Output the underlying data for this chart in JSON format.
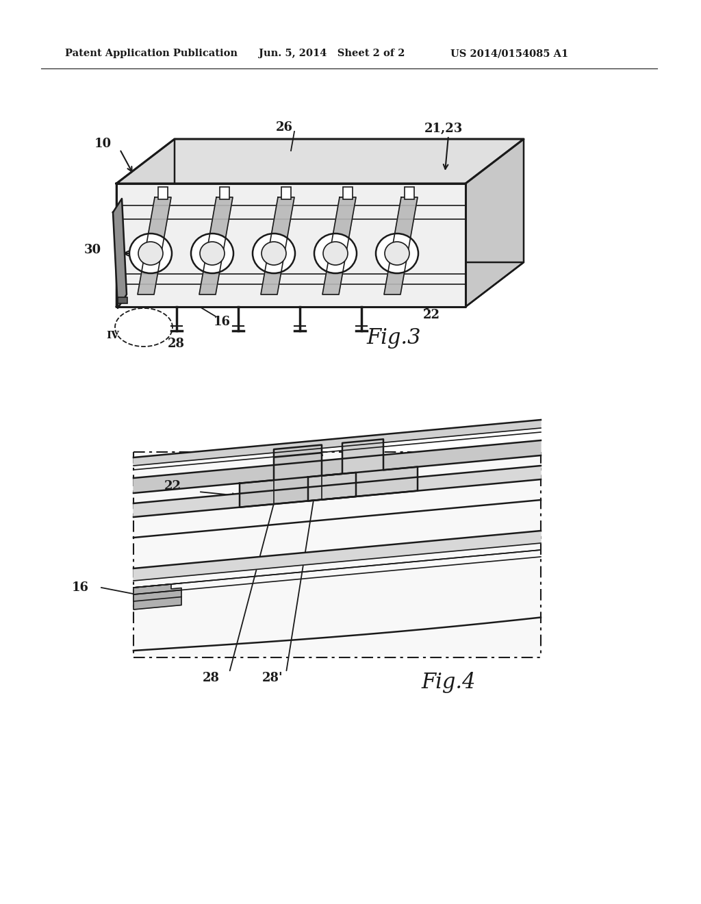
{
  "bg_color": "#ffffff",
  "line_color": "#1a1a1a",
  "header_text": "Patent Application Publication",
  "header_date": "Jun. 5, 2014   Sheet 2 of 2",
  "header_patent": "US 2014/0154085 A1",
  "fig3_label": "Fig.3",
  "fig4_label": "Fig.4"
}
